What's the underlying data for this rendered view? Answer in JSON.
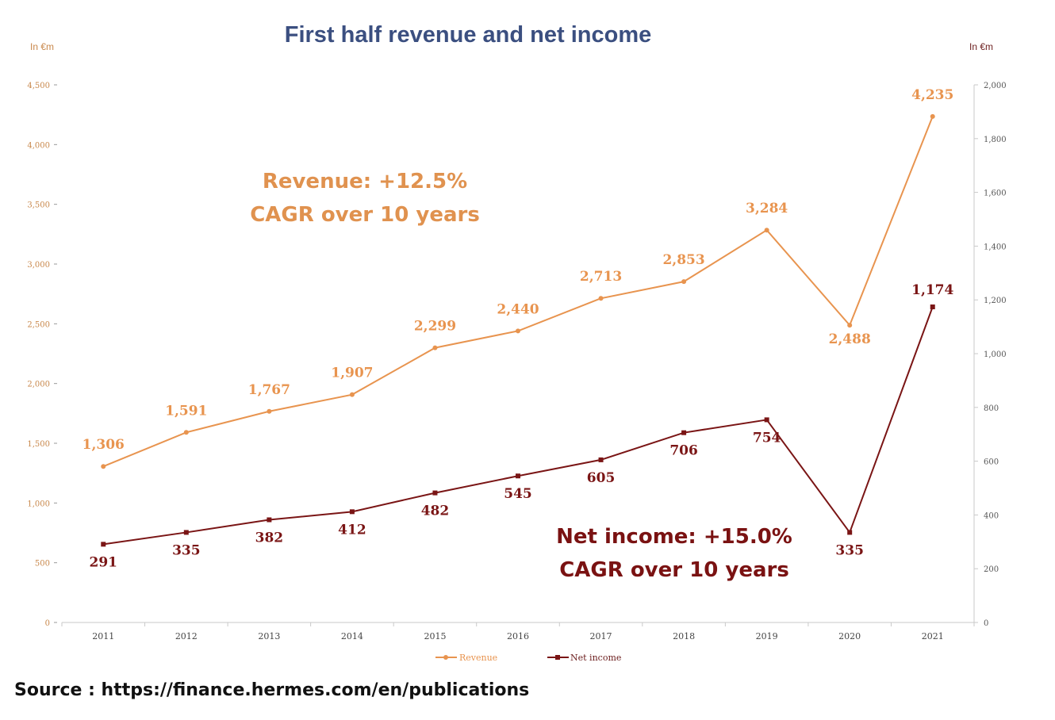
{
  "title": "First half revenue and net income",
  "unit_left": "In €m",
  "unit_right": "In €m",
  "annotations": {
    "revenue_line1": "Revenue: +12.5%",
    "revenue_line2": "CAGR over 10 years",
    "net_income_line1": "Net income: +15.0%",
    "net_income_line2": "CAGR over 10 years"
  },
  "source": "Source : https://finance.hermes.com/en/publications",
  "colors": {
    "revenue": "#e8944f",
    "net_income": "#7a1515",
    "title": "#3b4f80",
    "axis": "#c9c9c9"
  },
  "chart_data": {
    "type": "line",
    "title": "First half revenue and net income",
    "x": [
      "2011",
      "2012",
      "2013",
      "2014",
      "2015",
      "2016",
      "2017",
      "2018",
      "2019",
      "2020",
      "2021"
    ],
    "series": [
      {
        "name": "Revenue",
        "axis": "left",
        "values": [
          1306,
          1591,
          1767,
          1907,
          2299,
          2440,
          2713,
          2853,
          3284,
          2488,
          4235
        ],
        "labels": [
          "1,306",
          "1,591",
          "1,767",
          "1,907",
          "2,299",
          "2,440",
          "2,713",
          "2,853",
          "3,284",
          "2,488",
          "4,235"
        ]
      },
      {
        "name": "Net income",
        "axis": "right",
        "values": [
          291,
          335,
          382,
          412,
          482,
          545,
          605,
          706,
          754,
          335,
          1174
        ],
        "labels": [
          "291",
          "335",
          "382",
          "412",
          "482",
          "545",
          "605",
          "706",
          "754",
          "335",
          "1,174"
        ]
      }
    ],
    "ylim_left": [
      0,
      4500
    ],
    "ylim_right": [
      0,
      2000
    ],
    "yticks_left": [
      "0",
      "500",
      "1,000",
      "1,500",
      "2,000",
      "2,500",
      "3,000",
      "3,500",
      "4,000",
      "4,500"
    ],
    "yticks_right": [
      "0",
      "200",
      "400",
      "600",
      "800",
      "1,000",
      "1,200",
      "1,400",
      "1,600",
      "1,800",
      "2,000"
    ],
    "ylabel_left": "In €m",
    "ylabel_right": "In €m",
    "legend": [
      "Revenue",
      "Net income"
    ],
    "legend_position": "bottom",
    "grid": false
  }
}
